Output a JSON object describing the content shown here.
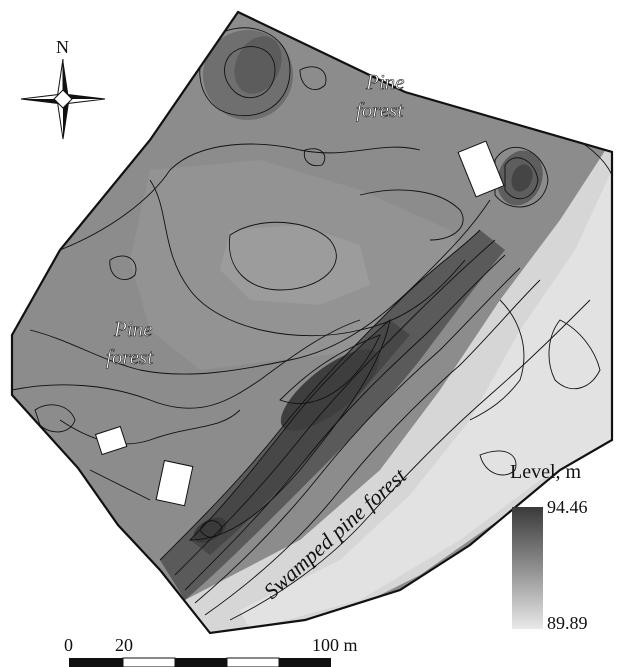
{
  "north_label": "N",
  "map_labels": {
    "pine_forest_ne_1": "Pine",
    "pine_forest_ne_2": "forest",
    "pine_forest_w_1": "Pine",
    "pine_forest_w_2": "forest",
    "swamped": "Swamped pine forest"
  },
  "legend": {
    "title": "Level, m",
    "max": "94.46",
    "min": "89.89",
    "max_color": "#3a3a3a",
    "min_color": "#e9e9e9"
  },
  "scale_bar": {
    "labels": [
      "0",
      "20",
      "100 m"
    ]
  },
  "icons": [
    "compass-rose-icon"
  ]
}
